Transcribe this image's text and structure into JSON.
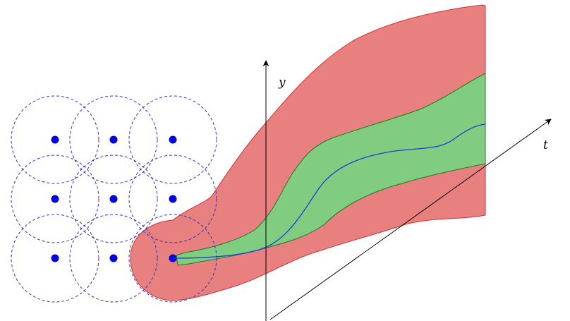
{
  "axes": {
    "y_label": "y",
    "t_label": "t"
  },
  "grid": {
    "rows": 3,
    "cols": 3,
    "highlighted_cell": "bottom-right"
  },
  "colors": {
    "outer_tube": "#e88080",
    "outer_tube_edge": "#cc3333",
    "inner_tube": "#80cc80",
    "inner_tube_edge": "#227722",
    "trajectory": "#1a3fd6",
    "point": "#0000dd",
    "dashed_circle": "#3333bb",
    "axis": "#000000"
  }
}
